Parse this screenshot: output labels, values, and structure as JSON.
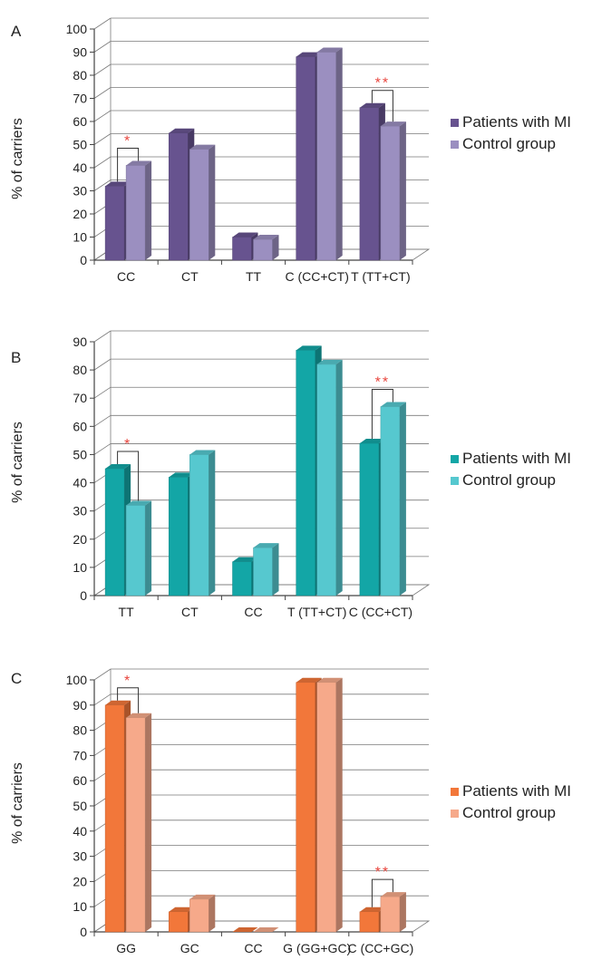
{
  "chart_data": [
    {
      "type": "bar",
      "panel_label": "A",
      "categories": [
        "CC",
        "CT",
        "TT",
        "C (CC+CT)",
        "T (TT+CT)"
      ],
      "series": [
        {
          "name": "Patients with MI",
          "values": [
            32,
            55,
            10,
            88,
            66
          ],
          "color": "#67538f"
        },
        {
          "name": "Control group",
          "values": [
            41,
            48,
            9,
            90,
            58
          ],
          "color": "#9b8fc0"
        }
      ],
      "ylabel": "% of carriers",
      "ylim": [
        0,
        100
      ],
      "yticks": [
        0,
        10,
        20,
        30,
        40,
        50,
        60,
        70,
        80,
        90,
        100
      ],
      "grid": true,
      "legend": "right",
      "significance": [
        {
          "category": 0,
          "label": "*"
        },
        {
          "category": 4,
          "label": "**"
        }
      ]
    },
    {
      "type": "bar",
      "panel_label": "B",
      "categories": [
        "TT",
        "CT",
        "CC",
        "T (TT+CT)",
        "C (CC+CT)"
      ],
      "series": [
        {
          "name": "Patients with MI",
          "values": [
            45,
            42,
            12,
            87,
            54
          ],
          "color": "#13a6a6"
        },
        {
          "name": "Control group",
          "values": [
            32,
            50,
            17,
            82,
            67
          ],
          "color": "#56c8cf"
        }
      ],
      "ylabel": "% of carriers",
      "ylim": [
        0,
        90
      ],
      "yticks": [
        0,
        10,
        20,
        30,
        40,
        50,
        60,
        70,
        80,
        90
      ],
      "grid": true,
      "legend": "right",
      "significance": [
        {
          "category": 0,
          "label": "*"
        },
        {
          "category": 4,
          "label": "**"
        }
      ]
    },
    {
      "type": "bar",
      "panel_label": "C",
      "categories": [
        "GG",
        "GC",
        "CC",
        "G (GG+GC)",
        "C (CC+GC)"
      ],
      "series": [
        {
          "name": "Patients with MI",
          "values": [
            90,
            8,
            0,
            99,
            8
          ],
          "color": "#f2773a"
        },
        {
          "name": "Control group",
          "values": [
            85,
            13,
            0,
            99,
            14
          ],
          "color": "#f6a98a"
        }
      ],
      "ylabel": "% of carriers",
      "ylim": [
        0,
        100
      ],
      "yticks": [
        0,
        10,
        20,
        30,
        40,
        50,
        60,
        70,
        80,
        90,
        100
      ],
      "grid": true,
      "legend": "right",
      "significance": [
        {
          "category": 0,
          "label": "*"
        },
        {
          "category": 4,
          "label": "**"
        }
      ]
    }
  ],
  "colors": {
    "axis": "#444444",
    "grid": "#7a7a7a",
    "text": "#222222",
    "significance": "#e8443c",
    "bracket": "#333333"
  }
}
